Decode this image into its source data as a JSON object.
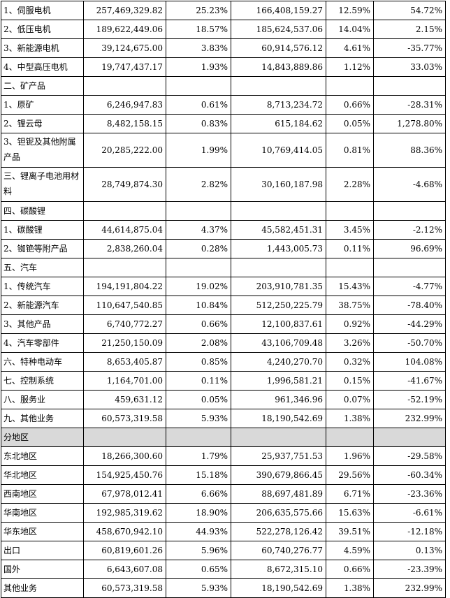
{
  "table": {
    "rows": [
      {
        "label": "1、伺服电机",
        "cells": [
          "257,469,329.82",
          "25.23%",
          "166,408,159.27",
          "12.59%",
          "54.72%"
        ]
      },
      {
        "label": "2、低压电机",
        "cells": [
          "189,622,449.06",
          "18.57%",
          "185,624,537.06",
          "14.04%",
          "2.15%"
        ]
      },
      {
        "label": "3、新能源电机",
        "cells": [
          "39,124,675.00",
          "3.83%",
          "60,914,576.12",
          "4.61%",
          "-35.77%"
        ]
      },
      {
        "label": "4、中型高压电机",
        "cells": [
          "19,747,437.17",
          "1.93%",
          "14,843,889.86",
          "1.12%",
          "33.03%"
        ]
      },
      {
        "label": "二、矿产品",
        "cells": [
          "",
          "",
          "",
          "",
          ""
        ]
      },
      {
        "label": "1、原矿",
        "cells": [
          "6,246,947.83",
          "0.61%",
          "8,713,234.72",
          "0.66%",
          "-28.31%"
        ]
      },
      {
        "label": "2、锂云母",
        "cells": [
          "8,482,158.15",
          "0.83%",
          "615,184.62",
          "0.05%",
          "1,278.80%"
        ]
      },
      {
        "label": "3、钽铌及其他附属产品",
        "tall": true,
        "cells": [
          "20,285,222.00",
          "1.99%",
          "10,769,414.05",
          "0.81%",
          "88.36%"
        ]
      },
      {
        "label": "三、锂离子电池用材料",
        "tall": true,
        "cells": [
          "28,749,874.30",
          "2.82%",
          "30,160,187.98",
          "2.28%",
          "-4.68%"
        ]
      },
      {
        "label": "四、碳酸锂",
        "cells": [
          "",
          "",
          "",
          "",
          ""
        ]
      },
      {
        "label": "1、碳酸锂",
        "cells": [
          "44,614,875.04",
          "4.37%",
          "45,582,451.31",
          "3.45%",
          "-2.12%"
        ]
      },
      {
        "label": "2、铷铯等附产品",
        "cells": [
          "2,838,260.04",
          "0.28%",
          "1,443,005.73",
          "0.11%",
          "96.69%"
        ]
      },
      {
        "label": "五、汽车",
        "cells": [
          "",
          "",
          "",
          "",
          ""
        ]
      },
      {
        "label": "1、传统汽车",
        "cells": [
          "194,191,804.22",
          "19.02%",
          "203,910,781.35",
          "15.43%",
          "-4.77%"
        ]
      },
      {
        "label": "2、新能源汽车",
        "cells": [
          "110,647,540.85",
          "10.84%",
          "512,250,225.79",
          "38.75%",
          "-78.40%"
        ]
      },
      {
        "label": "3、其他产品",
        "cells": [
          "6,740,772.27",
          "0.66%",
          "12,100,837.61",
          "0.92%",
          "-44.29%"
        ]
      },
      {
        "label": "4、汽车零部件",
        "cells": [
          "21,250,150.09",
          "2.08%",
          "43,106,709.48",
          "3.26%",
          "-50.70%"
        ]
      },
      {
        "label": "六、特种电动车",
        "cells": [
          "8,653,405.87",
          "0.85%",
          "4,240,270.70",
          "0.32%",
          "104.08%"
        ]
      },
      {
        "label": "七、控制系统",
        "cells": [
          "1,164,701.00",
          "0.11%",
          "1,996,581.21",
          "0.15%",
          "-41.67%"
        ]
      },
      {
        "label": "八、服务业",
        "cells": [
          "459,631.12",
          "0.05%",
          "961,346.96",
          "0.07%",
          "-52.19%"
        ]
      },
      {
        "label": "九、其他业务",
        "cells": [
          "60,573,319.58",
          "5.93%",
          "18,190,542.69",
          "1.38%",
          "232.99%"
        ]
      },
      {
        "label": "分地区",
        "shade": true,
        "cells": [
          "",
          "",
          "",
          "",
          ""
        ]
      },
      {
        "label": "东北地区",
        "cells": [
          "18,266,300.60",
          "1.79%",
          "25,937,751.53",
          "1.96%",
          "-29.58%"
        ]
      },
      {
        "label": "华北地区",
        "cells": [
          "154,925,450.76",
          "15.18%",
          "390,679,866.45",
          "29.56%",
          "-60.34%"
        ]
      },
      {
        "label": "西南地区",
        "cells": [
          "67,978,012.41",
          "6.66%",
          "88,697,481.89",
          "6.71%",
          "-23.36%"
        ]
      },
      {
        "label": "华南地区",
        "cells": [
          "192,985,319.62",
          "18.90%",
          "206,635,575.66",
          "15.63%",
          "-6.61%"
        ]
      },
      {
        "label": "华东地区",
        "cells": [
          "458,670,942.10",
          "44.93%",
          "522,278,126.42",
          "39.51%",
          "-12.18%"
        ]
      },
      {
        "label": "出口",
        "cells": [
          "60,819,601.26",
          "5.96%",
          "60,740,276.77",
          "4.59%",
          "0.13%"
        ]
      },
      {
        "label": "国外",
        "cells": [
          "6,643,607.08",
          "0.65%",
          "8,672,315.10",
          "0.66%",
          "-23.39%"
        ]
      },
      {
        "label": "其他业务",
        "cells": [
          "60,573,319.58",
          "5.93%",
          "18,190,542.69",
          "1.38%",
          "232.99%"
        ]
      }
    ]
  }
}
